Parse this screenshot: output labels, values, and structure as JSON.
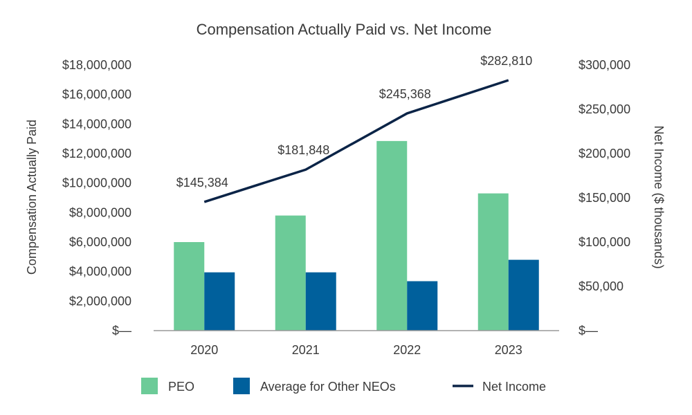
{
  "chart_data": {
    "type": "bar+line",
    "title": "Compensation Actually Paid vs. Net Income",
    "categories": [
      "2020",
      "2021",
      "2022",
      "2023"
    ],
    "series": [
      {
        "name": "PEO",
        "type": "bar",
        "axis": "left",
        "color": "#6ccb98",
        "values": [
          6000000,
          7800000,
          12850000,
          9300000
        ]
      },
      {
        "name": "Average for Other NEOs",
        "type": "bar",
        "axis": "left",
        "color": "#00609c",
        "values": [
          3950000,
          3950000,
          3350000,
          4800000
        ]
      },
      {
        "name": "Net Income",
        "type": "line",
        "axis": "right",
        "color": "#0b2447",
        "values": [
          145384,
          181848,
          245368,
          282810
        ],
        "labels": [
          "$145,384",
          "$181,848",
          "$245,368",
          "$282,810"
        ]
      }
    ],
    "ylabel": "Compensation Actually Paid",
    "y2label": "Net Income ($ thousands)",
    "ylim": [
      0,
      18000000
    ],
    "y2lim": [
      0,
      300000
    ],
    "yticks": [
      0,
      2000000,
      4000000,
      6000000,
      8000000,
      10000000,
      12000000,
      14000000,
      16000000,
      18000000
    ],
    "ytick_labels": [
      "$—",
      "$2,000,000",
      "$4,000,000",
      "$6,000,000",
      "$8,000,000",
      "$10,000,000",
      "$12,000,000",
      "$14,000,000",
      "$16,000,000",
      "$18,000,000"
    ],
    "y2ticks": [
      0,
      50000,
      100000,
      150000,
      200000,
      250000,
      300000
    ],
    "y2tick_labels": [
      "$—",
      "$50,000",
      "$100,000",
      "$150,000",
      "$200,000",
      "$250,000",
      "$300,000"
    ],
    "legend": "bottom",
    "grid": false
  }
}
